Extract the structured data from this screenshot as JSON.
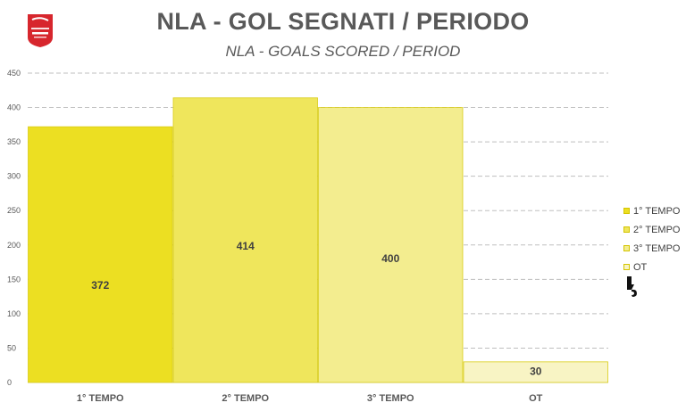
{
  "header": {
    "title": "NLA - GOL SEGNATI / PERIODO",
    "subtitle": "NLA - GOALS SCORED / PERIOD",
    "logo_icon": "national-league-logo"
  },
  "colors": {
    "series": [
      "#ecdf22",
      "#efe65c",
      "#f3ed8f",
      "#f8f4c4"
    ],
    "bar_stroke": "#d9cc16",
    "grid": "#bfbfbf",
    "axis_text": "#595959",
    "label_text": "#404040"
  },
  "chart_data": {
    "type": "bar",
    "title": "NLA - GOL SEGNATI / PERIODO",
    "subtitle": "NLA - GOALS SCORED / PERIOD",
    "categories": [
      "1° TEMPO",
      "2° TEMPO",
      "3° TEMPO",
      "OT"
    ],
    "values": [
      372,
      414,
      400,
      30
    ],
    "data_labels": [
      "372",
      "414",
      "400",
      "30"
    ],
    "ylim": [
      0,
      450
    ],
    "yticks": [
      0,
      50,
      100,
      150,
      200,
      250,
      300,
      350,
      400,
      450
    ],
    "ytick_labels": [
      "0",
      "50",
      "100",
      "150",
      "200",
      "250",
      "300",
      "350",
      "400",
      "450"
    ],
    "grid": true,
    "legend": {
      "position": "right",
      "entries": [
        "1° TEMPO",
        "2° TEMPO",
        "3° TEMPO",
        "OT"
      ]
    }
  },
  "cursor_icon": "hand-pointer-icon"
}
